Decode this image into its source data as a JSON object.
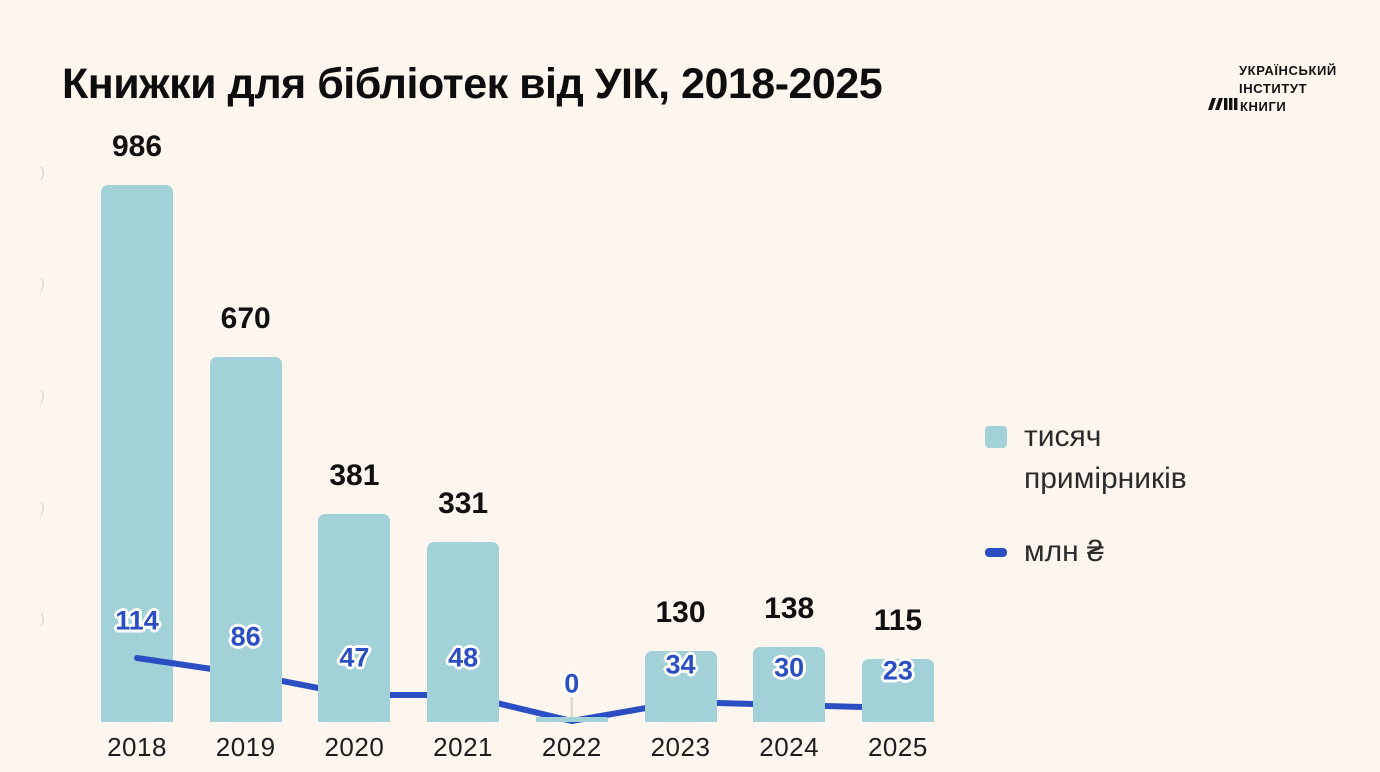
{
  "header": {
    "title": "Книжки для бібліотек від УІК, 2018-2025"
  },
  "logo": {
    "line1": "УКРАЇНСЬКИЙ",
    "line2": "ІНСТИТУТ",
    "line3": "КНИГИ"
  },
  "legend": {
    "bars_label": "тисяч примірників",
    "line_label": "млн ₴"
  },
  "colors": {
    "background": "#fdf6ee",
    "bar_fill": "#a2d1d8",
    "line_stroke": "#2b4fc3",
    "bar_label_text": "#101010",
    "line_label_text": "#2b4fc3"
  },
  "chart_data": {
    "type": "bar",
    "title": "Книжки для бібліотек від УІК, 2018-2025",
    "categories": [
      "2018",
      "2019",
      "2020",
      "2021",
      "2022",
      "2023",
      "2024",
      "2025"
    ],
    "series": [
      {
        "name": "тисяч примірників",
        "type": "bar",
        "color": "#a2d1d8",
        "values": [
          986,
          670,
          381,
          331,
          9,
          130,
          138,
          115
        ],
        "data_labels": [
          "986",
          "670",
          "381",
          "331",
          "",
          "130",
          "138",
          "115"
        ]
      },
      {
        "name": "млн ₴",
        "type": "line",
        "color": "#2b4fc3",
        "values": [
          114,
          86,
          47,
          48,
          0,
          34,
          30,
          23
        ],
        "data_labels": [
          "114",
          "86",
          "47",
          "48",
          "0",
          "34",
          "30",
          "23"
        ]
      }
    ],
    "xlabel": "",
    "ylabel": "",
    "ylim": [
      0,
      1100
    ],
    "grid": false,
    "legend_position": "right",
    "y_tick_remnants": [
      ")",
      ")",
      ")",
      ")",
      ")"
    ]
  }
}
